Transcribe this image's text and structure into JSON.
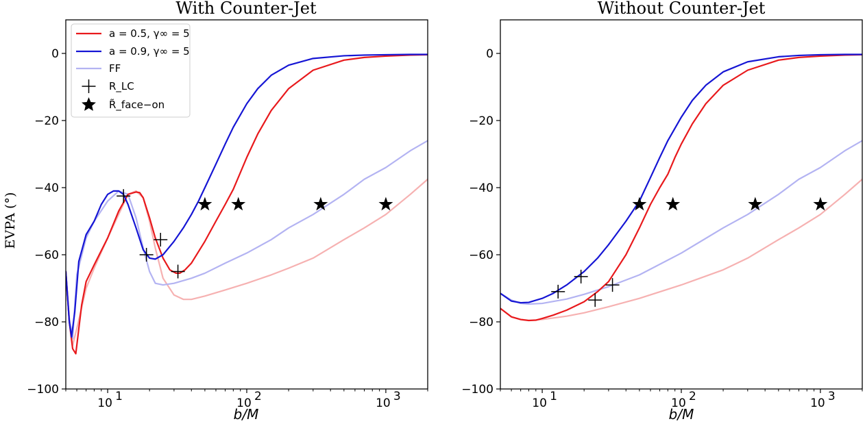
{
  "chart_data": [
    {
      "type": "line",
      "title": "With Counter-Jet",
      "xlabel": "b/M",
      "ylabel": "EVPA (°)",
      "xscale": "log",
      "xlim": [
        5,
        2000
      ],
      "ylim": [
        -100,
        10
      ],
      "yticks": [
        0,
        -20,
        -40,
        -60,
        -80,
        -100
      ],
      "ytick_labels": [
        "0",
        "−20",
        "−40",
        "−60",
        "−80",
        "−100"
      ],
      "xticks": [
        10,
        100,
        1000
      ],
      "xtick_labels": [
        "10",
        "10",
        "10"
      ],
      "xtick_exponents": [
        "1",
        "2",
        "3"
      ],
      "legend": {
        "position": "top-left",
        "entries": [
          {
            "label": "a = 0.5, γ∞ = 5",
            "color": "#e8191c",
            "kind": "line"
          },
          {
            "label": "a = 0.9, γ∞ = 5",
            "color": "#1515d4",
            "kind": "line"
          },
          {
            "label": "FF",
            "color": "#b3b3f2",
            "kind": "line"
          },
          {
            "label": "R_LC",
            "color": "#000000",
            "kind": "plus"
          },
          {
            "label": "R̃_face−on",
            "color": "#000000",
            "kind": "star"
          }
        ]
      },
      "series": [
        {
          "name": "a=0.5 FF",
          "color": "#f6b1b1",
          "x": [
            5,
            5.3,
            5.6,
            6,
            7,
            8,
            10,
            12,
            14,
            16,
            18,
            20,
            22,
            25,
            30,
            35,
            40,
            50,
            70,
            100,
            150,
            200,
            300,
            500,
            700,
            1000,
            1500,
            2000
          ],
          "y": [
            -65,
            -80,
            -87,
            -82,
            -70,
            -64,
            -55,
            -48,
            -42,
            -41,
            -43,
            -50,
            -58,
            -67,
            -72,
            -73.3,
            -73.3,
            -72.3,
            -70.5,
            -68.5,
            -66,
            -64,
            -61,
            -55.5,
            -52,
            -48,
            -42,
            -37.5
          ]
        },
        {
          "name": "a=0.9 FF",
          "color": "#b3b3f2",
          "x": [
            5,
            5.3,
            5.6,
            6,
            7,
            8,
            10,
            12,
            14,
            16,
            18,
            20,
            22,
            25,
            30,
            40,
            50,
            70,
            100,
            150,
            200,
            300,
            500,
            700,
            1000,
            1500,
            2000
          ],
          "y": [
            -65,
            -79,
            -85,
            -66,
            -55,
            -50,
            -44,
            -41,
            -42,
            -49,
            -58,
            -65,
            -68.5,
            -69,
            -68.5,
            -67,
            -65.5,
            -62.5,
            -59.5,
            -55.5,
            -52,
            -48,
            -42,
            -37.5,
            -34,
            -29,
            -26
          ]
        },
        {
          "name": "a = 0.5, γ∞ = 5",
          "color": "#e8191c",
          "x": [
            5,
            5.3,
            5.6,
            5.9,
            6.5,
            7,
            8,
            10,
            12,
            14,
            16,
            17,
            18,
            20,
            22,
            25,
            28,
            31,
            33,
            36,
            40,
            50,
            60,
            70,
            80,
            90,
            100,
            120,
            150,
            200,
            300,
            500,
            700,
            1000,
            1500,
            2000
          ],
          "y": [
            -65,
            -80,
            -88,
            -89.5,
            -75,
            -68,
            -63,
            -55,
            -47,
            -42,
            -41.3,
            -41.5,
            -43,
            -49,
            -55,
            -61,
            -64.5,
            -65.5,
            -65.5,
            -64.5,
            -62.5,
            -56,
            -50,
            -45,
            -40.5,
            -35.5,
            -31,
            -24,
            -17,
            -10.5,
            -5,
            -2,
            -1.2,
            -0.8,
            -0.5,
            -0.4
          ]
        },
        {
          "name": "a = 0.9, γ∞ = 5",
          "color": "#1515d4",
          "x": [
            5,
            5.3,
            5.5,
            5.8,
            6.2,
            7,
            8,
            9,
            10,
            11,
            12,
            13,
            14,
            16,
            18,
            20,
            22,
            25,
            30,
            35,
            40,
            45,
            50,
            60,
            70,
            80,
            100,
            120,
            150,
            200,
            300,
            500,
            700,
            1000,
            1500,
            2000
          ],
          "y": [
            -65,
            -80,
            -84.5,
            -77,
            -62,
            -54,
            -50,
            -45,
            -42,
            -41,
            -41,
            -42,
            -45,
            -52,
            -58.5,
            -61,
            -61.3,
            -60,
            -56,
            -52,
            -48,
            -44,
            -40,
            -33,
            -27,
            -22,
            -15,
            -10.5,
            -6.5,
            -3.5,
            -1.5,
            -0.7,
            -0.5,
            -0.4,
            -0.3,
            -0.3
          ]
        }
      ],
      "markers": {
        "R_LC": {
          "x": [
            13,
            19,
            24,
            32
          ],
          "y": [
            -42.5,
            -60,
            -55.5,
            -65
          ]
        },
        "R_face_on": {
          "x": [
            50,
            87,
            340,
            1000
          ],
          "y": [
            -45,
            -45,
            -45,
            -45
          ]
        }
      }
    },
    {
      "type": "line",
      "title": "Without Counter-Jet",
      "xlabel": "b/M",
      "ylabel": "",
      "xscale": "log",
      "xlim": [
        5,
        2000
      ],
      "ylim": [
        -100,
        10
      ],
      "yticks": [
        0,
        -20,
        -40,
        -60,
        -80,
        -100
      ],
      "ytick_labels": [
        "0",
        "−20",
        "−40",
        "−60",
        "−80",
        "−100"
      ],
      "xticks": [
        10,
        100,
        1000
      ],
      "xtick_labels": [
        "10",
        "10",
        "10"
      ],
      "xtick_exponents": [
        "1",
        "2",
        "3"
      ],
      "series": [
        {
          "name": "a=0.5 FF",
          "color": "#f6b1b1",
          "x": [
            5,
            6,
            7,
            8,
            10,
            15,
            20,
            30,
            50,
            100,
            200,
            300,
            500,
            700,
            1000,
            1500,
            2000
          ],
          "y": [
            -76,
            -78.5,
            -79.3,
            -79.5,
            -79.3,
            -78.3,
            -77.3,
            -75.5,
            -73,
            -69,
            -64.5,
            -61,
            -55.5,
            -52,
            -48,
            -42,
            -37.5
          ]
        },
        {
          "name": "a=0.9 FF",
          "color": "#b3b3f2",
          "x": [
            5,
            6,
            7,
            8,
            10,
            15,
            20,
            30,
            50,
            100,
            200,
            300,
            500,
            700,
            1000,
            1500,
            2000
          ],
          "y": [
            -71.5,
            -73.5,
            -74.5,
            -74.7,
            -74.5,
            -73.2,
            -71.8,
            -69.5,
            -66,
            -59.5,
            -52,
            -48,
            -42,
            -37.5,
            -34,
            -29,
            -26
          ]
        },
        {
          "name": "a = 0.5, γ∞ = 5",
          "color": "#e8191c",
          "x": [
            5,
            6,
            7,
            8,
            9,
            10,
            12,
            15,
            20,
            25,
            30,
            40,
            50,
            60,
            70,
            80,
            90,
            100,
            120,
            150,
            200,
            300,
            500,
            700,
            1000,
            1500,
            2000
          ],
          "y": [
            -76,
            -78.5,
            -79.3,
            -79.6,
            -79.5,
            -79,
            -78,
            -76.5,
            -74,
            -71,
            -68,
            -60,
            -52,
            -45,
            -40,
            -36,
            -31,
            -27,
            -21,
            -15,
            -9.5,
            -5,
            -2,
            -1.2,
            -0.8,
            -0.5,
            -0.4
          ]
        },
        {
          "name": "a = 0.9, γ∞ = 5",
          "color": "#1515d4",
          "x": [
            5,
            6,
            7,
            8,
            10,
            12,
            15,
            20,
            25,
            30,
            40,
            50,
            60,
            70,
            80,
            100,
            120,
            150,
            200,
            300,
            500,
            700,
            1000,
            1500,
            2000
          ],
          "y": [
            -71.5,
            -73.8,
            -74.3,
            -74.2,
            -73,
            -71.5,
            -69,
            -65,
            -61,
            -57,
            -50,
            -44,
            -37,
            -31,
            -26,
            -19,
            -14,
            -9.5,
            -5.5,
            -2.5,
            -1,
            -0.6,
            -0.4,
            -0.3,
            -0.3
          ]
        }
      ],
      "markers": {
        "R_LC": {
          "x": [
            13,
            19,
            24,
            32
          ],
          "y": [
            -71,
            -66.5,
            -73.5,
            -69
          ]
        },
        "R_face_on": {
          "x": [
            50,
            87,
            340,
            1000
          ],
          "y": [
            -45,
            -45,
            -45,
            -45
          ]
        }
      }
    }
  ]
}
